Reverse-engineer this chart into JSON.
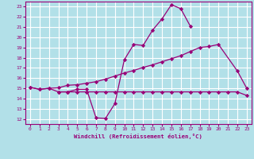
{
  "bg_color": "#b2e0e8",
  "grid_color": "#ffffff",
  "line_color": "#990077",
  "xlabel": "Windchill (Refroidissement éolien,°C)",
  "xlim": [
    -0.5,
    23.5
  ],
  "ylim": [
    11.5,
    23.5
  ],
  "xticks": [
    0,
    1,
    2,
    3,
    4,
    5,
    6,
    7,
    8,
    9,
    10,
    11,
    12,
    13,
    14,
    15,
    16,
    17,
    18,
    19,
    20,
    21,
    22,
    23
  ],
  "yticks": [
    12,
    13,
    14,
    15,
    16,
    17,
    18,
    19,
    20,
    21,
    22,
    23
  ],
  "line1_x": [
    0,
    1,
    2,
    3,
    4,
    5,
    6,
    7,
    8,
    9,
    10,
    11,
    12,
    13,
    14,
    15,
    16,
    17
  ],
  "line1_y": [
    15.1,
    14.9,
    15.0,
    14.65,
    14.65,
    14.9,
    14.9,
    12.1,
    12.05,
    13.5,
    17.8,
    19.3,
    19.2,
    20.7,
    21.8,
    23.2,
    22.8,
    21.1
  ],
  "line2_x": [
    0,
    1,
    2,
    3,
    4,
    5,
    6,
    7,
    8,
    9,
    10,
    11,
    12,
    13,
    14,
    15,
    16,
    17,
    18,
    19,
    20,
    22,
    23
  ],
  "line2_y": [
    15.1,
    14.9,
    15.0,
    15.05,
    15.3,
    15.35,
    15.5,
    15.65,
    15.9,
    16.2,
    16.5,
    16.75,
    17.05,
    17.3,
    17.6,
    17.9,
    18.2,
    18.6,
    19.0,
    19.1,
    19.3,
    16.7,
    15.0
  ],
  "line3_x": [
    3,
    4,
    5,
    6,
    7,
    8,
    9,
    10,
    11,
    12,
    13,
    14,
    15,
    16,
    17,
    18,
    19,
    20,
    21,
    22,
    23
  ],
  "line3_y": [
    14.65,
    14.65,
    14.65,
    14.65,
    14.65,
    14.65,
    14.65,
    14.65,
    14.65,
    14.65,
    14.65,
    14.65,
    14.65,
    14.65,
    14.65,
    14.65,
    14.65,
    14.65,
    14.65,
    14.65,
    14.3
  ],
  "marker": "D",
  "markersize": 2.2,
  "linewidth": 0.9
}
